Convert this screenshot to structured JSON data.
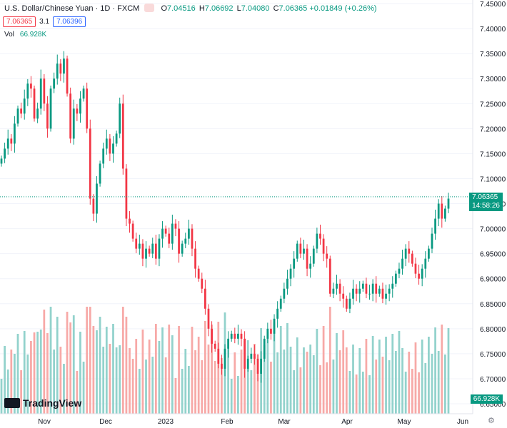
{
  "header": {
    "symbol": "U.S. Dollar/Chinese Yuan · 1D · FXCM",
    "o_label": "O",
    "o_value": "7.04516",
    "h_label": "H",
    "h_value": "7.06692",
    "l_label": "L",
    "l_value": "7.04080",
    "c_label": "C",
    "c_value": "7.06365",
    "change": "+0.01849 (+0.26%)",
    "bid": "7.06365",
    "spread": "3.1",
    "ask": "7.06396"
  },
  "volume": {
    "label": "Vol",
    "value": "66.928K"
  },
  "price_tag": {
    "value": "7.06365",
    "countdown": "14:58:26",
    "color": "#089981"
  },
  "volume_tag": {
    "value": "66.928K",
    "color": "#089981"
  },
  "logo": {
    "text": "TradingView"
  },
  "colors": {
    "up": "#089981",
    "down": "#f23645",
    "vol_up": "#92d2cc",
    "vol_down": "#f7a9a7"
  },
  "chart_data": {
    "type": "candlestick",
    "y_ticks": [
      "7.45000",
      "7.40000",
      "7.35000",
      "7.30000",
      "7.25000",
      "7.20000",
      "7.15000",
      "7.10000",
      "7.05000",
      "7.00000",
      "6.95000",
      "6.90000",
      "6.85000",
      "6.80000",
      "6.75000",
      "6.70000",
      "6.65000"
    ],
    "ylim": [
      6.65,
      7.45
    ],
    "x_labels": [
      "Nov",
      "Dec",
      "2023",
      "Feb",
      "Mar",
      "Apr",
      "May",
      "Jun"
    ],
    "last_price": 7.06365,
    "close": [
      7.14,
      7.16,
      7.18,
      7.17,
      7.21,
      7.24,
      7.23,
      7.26,
      7.29,
      7.28,
      7.22,
      7.24,
      7.3,
      7.25,
      7.2,
      7.28,
      7.3,
      7.33,
      7.31,
      7.34,
      7.27,
      7.18,
      7.24,
      7.23,
      7.26,
      7.28,
      7.2,
      7.06,
      7.03,
      7.09,
      7.13,
      7.16,
      7.18,
      7.15,
      7.17,
      7.19,
      7.25,
      7.12,
      7.02,
      7.01,
      6.98,
      6.96,
      6.97,
      6.94,
      6.96,
      6.95,
      6.97,
      6.94,
      6.98,
      7.0,
      6.99,
      6.97,
      7.01,
      7.0,
      6.95,
      6.97,
      6.98,
      7.0,
      6.96,
      6.92,
      6.9,
      6.88,
      6.84,
      6.8,
      6.77,
      6.76,
      6.73,
      6.72,
      6.76,
      6.78,
      6.79,
      6.78,
      6.79,
      6.78,
      6.72,
      6.74,
      6.75,
      6.74,
      6.71,
      6.74,
      6.78,
      6.8,
      6.79,
      6.82,
      6.84,
      6.86,
      6.88,
      6.9,
      6.92,
      6.94,
      6.97,
      6.95,
      6.96,
      6.92,
      6.93,
      6.96,
      6.99,
      6.98,
      6.95,
      6.94,
      6.87,
      6.88,
      6.89,
      6.87,
      6.86,
      6.84,
      6.86,
      6.88,
      6.87,
      6.88,
      6.89,
      6.87,
      6.87,
      6.89,
      6.87,
      6.88,
      6.86,
      6.87,
      6.88,
      6.89,
      6.91,
      6.92,
      6.94,
      6.96,
      6.95,
      6.93,
      6.91,
      6.9,
      6.92,
      6.94,
      6.96,
      6.99,
      7.02,
      7.05,
      7.02,
      7.04,
      7.06
    ]
  }
}
